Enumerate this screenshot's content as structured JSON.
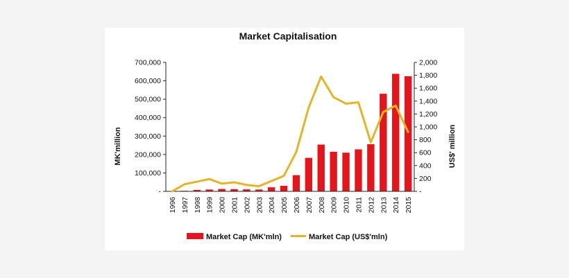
{
  "chart_data": {
    "type": "bar+line",
    "title": "Market Capitalisation",
    "ylabel_left": "MK'million",
    "ylabel_right": "US$' million",
    "categories": [
      "1996",
      "1997",
      "1998",
      "1999",
      "2000",
      "2001",
      "2002",
      "2003",
      "2004",
      "2005",
      "2006",
      "2007",
      "2008",
      "2009",
      "2010",
      "2011",
      "2012",
      "2013",
      "2014",
      "2015"
    ],
    "y_left": {
      "min": 0,
      "max": 700000,
      "ticks": [
        0,
        100000,
        200000,
        300000,
        400000,
        500000,
        600000,
        700000
      ],
      "tick_labels": [
        "-",
        "100,000",
        "200,000",
        "300,000",
        "400,000",
        "500,000",
        "600,000",
        "700,000"
      ]
    },
    "y_right": {
      "min": 0,
      "max": 2000,
      "ticks": [
        0,
        200,
        400,
        600,
        800,
        1000,
        1200,
        1400,
        1600,
        1800,
        2000
      ],
      "tick_labels": [
        "-",
        "200",
        "400",
        "600",
        "800",
        "1,000",
        "1,200",
        "1,400",
        "1,600",
        "1,800",
        "2,000"
      ]
    },
    "series": [
      {
        "name": "Market Cap (MK'mln)",
        "kind": "bar",
        "axis": "left",
        "color": "#e8141c",
        "values": [
          1000,
          3000,
          8000,
          10000,
          13000,
          12000,
          11000,
          10000,
          22000,
          30000,
          88000,
          182000,
          254000,
          215000,
          210000,
          228000,
          256000,
          530000,
          638000,
          625000
        ]
      },
      {
        "name": "Market Cap (US$'mln)",
        "kind": "line",
        "axis": "right",
        "color": "#e6b422",
        "values": [
          0,
          110,
          150,
          190,
          120,
          140,
          100,
          80,
          160,
          240,
          610,
          1300,
          1780,
          1460,
          1360,
          1380,
          760,
          1230,
          1330,
          920
        ]
      }
    ],
    "legend_position": "bottom",
    "grid": false
  }
}
